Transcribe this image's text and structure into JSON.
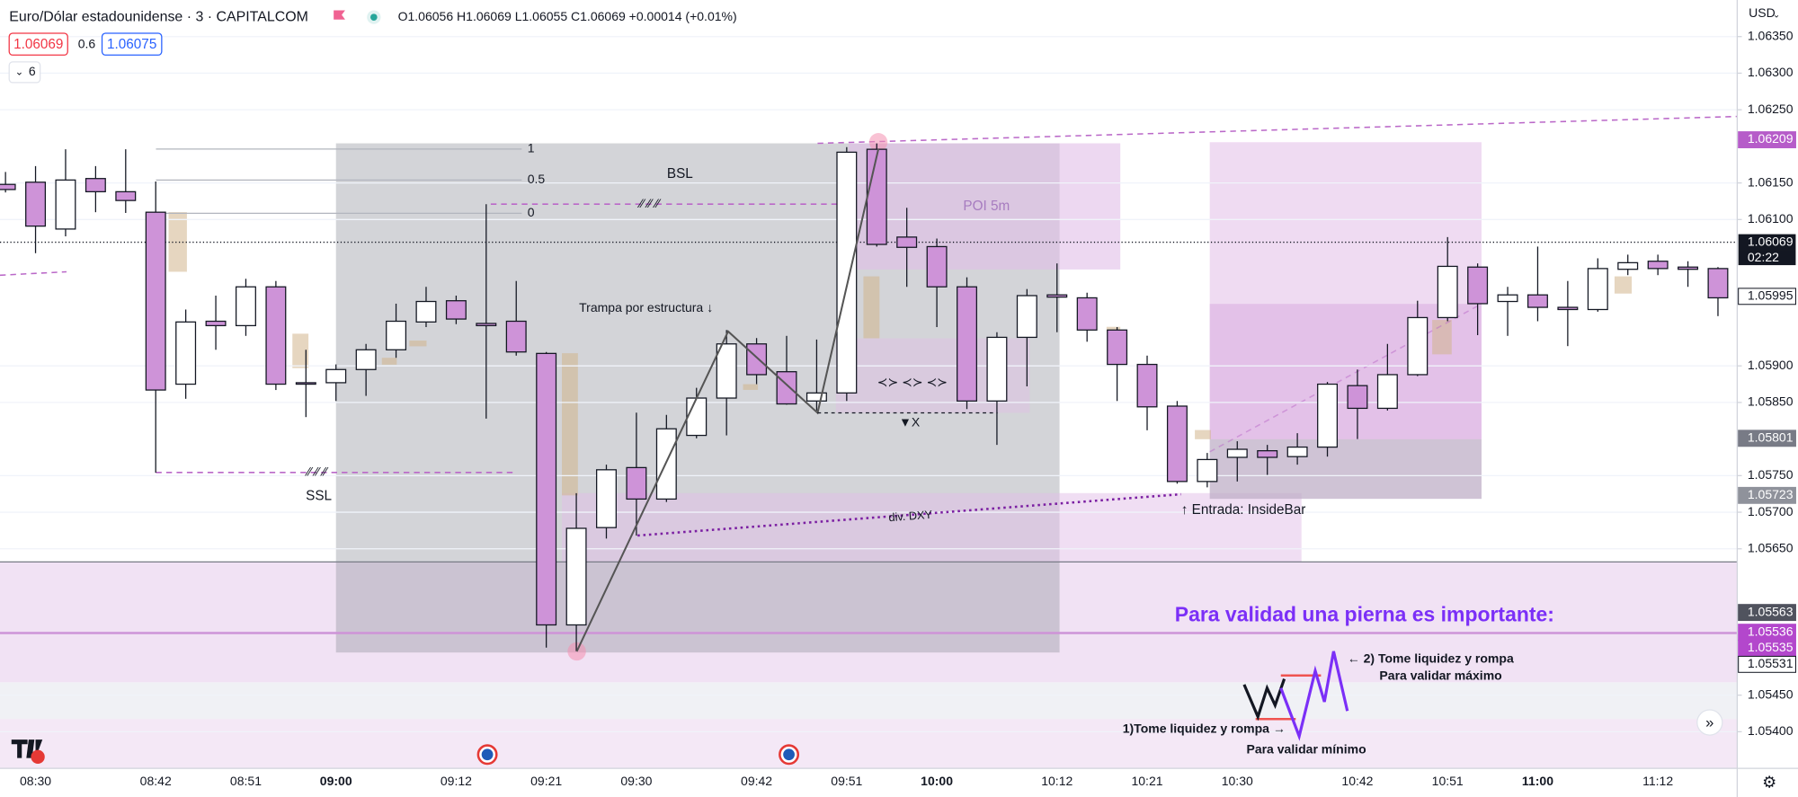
{
  "chart_data": {
    "type": "candlestick",
    "title": "Euro/Dólar estadounidense · 3 · CAPITALCOM",
    "ohlc_summary": "O1.06056 H1.06069 L1.06055 C1.06069 +0.00014 (+0.01%)",
    "quote": {
      "bid": 1.06069,
      "spread": 0.6,
      "ask": 1.06075
    },
    "indicators_count": 6,
    "currency": "USD",
    "categories": [
      null,
      "08:30",
      null,
      null,
      null,
      "08:42",
      null,
      null,
      "08:51",
      null,
      null,
      "09:00",
      null,
      null,
      null,
      "09:12",
      null,
      null,
      "09:21",
      null,
      null,
      "09:30",
      null,
      null,
      null,
      "09:42",
      null,
      null,
      "09:51",
      null,
      null,
      "10:00",
      null,
      null,
      null,
      "10:12",
      null,
      null,
      "10:21",
      null,
      null,
      "10:30",
      null,
      null,
      null,
      "10:42",
      null,
      null,
      "10:51",
      null,
      null,
      "11:00",
      null,
      null,
      null,
      "11:12",
      null,
      null
    ],
    "open": [
      1.06148,
      1.06151,
      1.06087,
      1.06156,
      1.06138,
      1.0611,
      1.05875,
      1.05961,
      1.05955,
      1.06008,
      1.05877,
      1.05877,
      1.05895,
      1.05922,
      1.0596,
      1.05989,
      1.05958,
      1.05961,
      1.05917,
      1.05546,
      1.05679,
      1.05761,
      1.05718,
      1.05805,
      1.05856,
      1.0593,
      1.05892,
      1.05852,
      1.05863,
      1.06196,
      1.06076,
      1.06063,
      1.06008,
      1.05852,
      1.05939,
      1.05997,
      1.05993,
      1.05949,
      1.05902,
      1.05845,
      1.05742,
      1.05775,
      1.05784,
      1.05776,
      1.05789,
      1.05873,
      1.05842,
      1.05888,
      1.05966,
      1.06035,
      1.05988,
      1.05997,
      1.0598,
      1.05977,
      1.06032,
      1.06043,
      1.06035,
      1.06033
    ],
    "high": [
      1.06165,
      1.06173,
      1.06196,
      1.06173,
      1.06196,
      1.06152,
      1.05977,
      1.05996,
      1.06019,
      1.06016,
      1.05922,
      1.05902,
      1.0593,
      1.05985,
      1.06008,
      1.05996,
      1.06121,
      1.06016,
      1.05919,
      1.05726,
      1.05765,
      1.05836,
      1.05833,
      1.0587,
      1.05949,
      1.05938,
      1.05941,
      1.05936,
      1.06199,
      1.06204,
      1.06116,
      1.06074,
      1.06021,
      1.05946,
      1.06005,
      1.0604,
      1.06,
      1.05953,
      1.05914,
      1.05852,
      1.05781,
      1.05797,
      1.05792,
      1.05808,
      1.05878,
      1.05895,
      1.0593,
      1.05989,
      1.06076,
      1.0604,
      1.06008,
      1.06063,
      1.06016,
      1.06047,
      1.06052,
      1.06052,
      1.06043,
      1.06035
    ],
    "low": [
      1.06137,
      1.06054,
      1.06077,
      1.0611,
      1.06109,
      1.05754,
      1.05855,
      1.05922,
      1.05941,
      1.05867,
      1.0583,
      1.05852,
      1.05859,
      1.05911,
      1.05953,
      1.05957,
      1.05828,
      1.05914,
      1.05515,
      1.0551,
      1.05664,
      1.05668,
      1.05714,
      1.05801,
      1.05805,
      1.05875,
      1.05847,
      1.05839,
      1.05852,
      1.06063,
      1.06008,
      1.05953,
      1.05841,
      1.05792,
      1.05872,
      1.05946,
      1.05933,
      1.05852,
      1.05812,
      1.05739,
      1.05734,
      1.05742,
      1.05751,
      1.05765,
      1.05776,
      1.058,
      1.05839,
      1.05886,
      1.05961,
      1.05942,
      1.05941,
      1.05961,
      1.05927,
      1.05974,
      1.06024,
      1.06024,
      1.06008,
      1.05968
    ],
    "close": [
      1.06141,
      1.06091,
      1.06154,
      1.06138,
      1.06126,
      1.05867,
      1.0596,
      1.05955,
      1.06008,
      1.05875,
      1.05875,
      1.05895,
      1.05922,
      1.05961,
      1.05988,
      1.05964,
      1.05955,
      1.05919,
      1.05546,
      1.05678,
      1.05758,
      1.05718,
      1.05814,
      1.05856,
      1.0593,
      1.05888,
      1.05848,
      1.05863,
      1.06192,
      1.06066,
      1.06062,
      1.06008,
      1.05852,
      1.05939,
      1.05996,
      1.05994,
      1.05949,
      1.05902,
      1.05844,
      1.05742,
      1.05772,
      1.05786,
      1.05775,
      1.05789,
      1.05875,
      1.05842,
      1.05888,
      1.05966,
      1.06036,
      1.05985,
      1.05997,
      1.0598,
      1.05977,
      1.06033,
      1.06041,
      1.06033,
      1.06032,
      1.05993
    ],
    "up_color": "#ffffff",
    "down_color": "#ce93d8",
    "ylim": [
      1.0535,
      1.064
    ],
    "yticks": [
      {
        "value": 1.0635,
        "label": "1.06350"
      },
      {
        "value": 1.063,
        "label": "1.06300"
      },
      {
        "value": 1.0625,
        "label": "1.06250"
      },
      {
        "value": 1.0615,
        "label": "1.06150"
      },
      {
        "value": 1.061,
        "label": "1.06100"
      },
      {
        "value": 1.059,
        "label": "1.05900"
      },
      {
        "value": 1.0585,
        "label": "1.05850"
      },
      {
        "value": 1.0575,
        "label": "1.05750"
      },
      {
        "value": 1.057,
        "label": "1.05700"
      },
      {
        "value": 1.0565,
        "label": "1.05650"
      },
      {
        "value": 1.0545,
        "label": "1.05450"
      },
      {
        "value": 1.054,
        "label": "1.05400"
      }
    ],
    "current_price": 1.06069,
    "countdown": "02:22",
    "price_tags": [
      {
        "value": 1.06209,
        "color": "#b65cc9",
        "text_color": "#ffffff"
      },
      {
        "value": 1.05995,
        "color": "#ffffff",
        "text_color": "#131722"
      },
      {
        "value": 1.05801,
        "color": "#787b86",
        "text_color": "#ffffff"
      },
      {
        "value": 1.05723,
        "color": "#8f929b",
        "text_color": "#ffffff"
      },
      {
        "value": 1.05563,
        "color": "#50535e",
        "text_color": "#ffffff"
      },
      {
        "value": 1.05536,
        "color": "#b347cc",
        "text_color": "#ffffff"
      },
      {
        "value": 1.05535,
        "color": "#b347cc",
        "text_color": "#ffffff"
      },
      {
        "value": 1.05531,
        "color": "#ffffff",
        "text_color": "#131722"
      }
    ],
    "fib_levels": [
      1,
      0.5,
      0
    ],
    "annotations": {
      "bsl": "BSL",
      "ssl": "SSL",
      "trap": "Trampa por estructura ↓",
      "poi": "POI 5m",
      "x_mark": "▼X",
      "divergence": "div. DXY",
      "entry": "↑ Entrada: InsideBar",
      "heading": "Para validad una pierna es importante:",
      "step2": "← 2) Tome liquidez y rompa",
      "step2_note": "Para validar máximo",
      "step1": "1)Tome liquidez y rompa →",
      "step1_note": "Para validar mínimo"
    }
  }
}
